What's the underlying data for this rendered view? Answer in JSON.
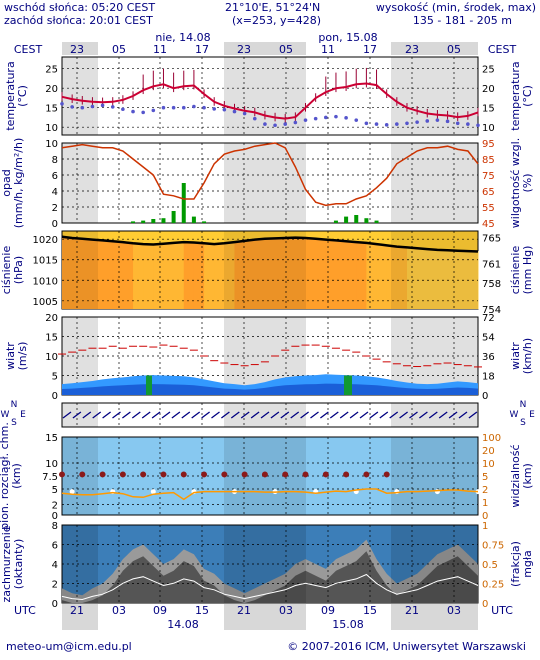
{
  "header": {
    "sunrise": "wschód słońca: 05:20 CEST",
    "sunset": "zachód słońca: 20:01 CEST",
    "coords": "21°10'E, 51°24'N",
    "grid": "(x=253, y=428)",
    "height_label": "wysokość (min, środek, max)",
    "height_values": "135 - 181 - 205 m"
  },
  "footer": {
    "email": "meteo-um@icm.edu.pl",
    "copyright": "© 2007-2016 ICM, Uniwersytet Warszawski"
  },
  "colors": {
    "bg": "#ffffff",
    "panel_bg": "#ffffff",
    "night_shade": "#d8d8d8",
    "accent": "#000080",
    "temp_line": "#cc0033",
    "dew_dots": "#5555cc",
    "humidity_line": "#cc3300",
    "precip_bar": "#009900",
    "pressure_line": "#000000",
    "wind_fill": "#1a5fd8",
    "wind_fill_light": "#3399ff",
    "wind_green": "#119933",
    "vis_bg": "#87c8f0",
    "vis_line": "#ff9900",
    "cloud_bg": "#3c7eb8"
  },
  "chart_data": {
    "type": "line",
    "top_axis": {
      "tz_left": "CEST",
      "tz_right": "CEST",
      "date_labels": [
        "nie, 14.08",
        "pon, 15.08"
      ],
      "hour_labels": [
        "23",
        "05",
        "11",
        "17",
        "23",
        "05",
        "11",
        "17",
        "23",
        "05"
      ]
    },
    "bottom_axis": {
      "tz_left": "UTC",
      "tz_right": "UTC",
      "date_labels": [
        "14.08",
        "15.08"
      ],
      "hour_labels": [
        "21",
        "03",
        "09",
        "15",
        "21",
        "03",
        "09",
        "15",
        "21",
        "03"
      ]
    },
    "panels": [
      {
        "id": "temperature",
        "ylabel_left": "temperatura\n(°C)",
        "ylabel_right": "temperatura\n(°C)",
        "ylim": [
          8,
          28
        ],
        "yticks": [
          10,
          15,
          20,
          25
        ],
        "series": [
          {
            "values": [
              17.8,
              17.2,
              16.8,
              16.5,
              16.4,
              16.5,
              17.0,
              18.0,
              19.5,
              20.5,
              21.0,
              20.0,
              20.5,
              20.7,
              18.5,
              16.5,
              15.5,
              14.8,
              14.2,
              13.8,
              13.0,
              12.5,
              12.2,
              12.6,
              15.0,
              17.5,
              19.0,
              20.0,
              20.3,
              21.0,
              21.2,
              20.8,
              18.5,
              16.5,
              15.0,
              14.2,
              13.5,
              13.2,
              13.0,
              12.6,
              12.9,
              13.8
            ]
          },
          {
            "values": [
              16.0,
              15.2,
              15.0,
              15.3,
              15.6,
              15.2,
              14.6,
              14.0,
              13.8,
              14.3,
              15.0,
              15.0,
              15.0,
              15.3,
              15.0,
              14.7,
              14.5,
              14.0,
              13.5,
              12.2,
              10.8,
              10.5,
              10.8,
              11.2,
              11.8,
              12.2,
              12.5,
              12.7,
              12.4,
              11.8,
              11.0,
              10.8,
              10.6,
              10.8,
              11.0,
              11.3,
              11.6,
              11.8,
              11.5,
              11.0,
              10.8,
              10.5
            ]
          }
        ]
      },
      {
        "id": "precip_humidity",
        "ylabel_left": "opad\n(mm/h, kg/m²/h)",
        "ylabel_right": "wilgotność wzgl.\n(%)",
        "ylim": [
          0,
          10
        ],
        "yticks": [
          0,
          2,
          4,
          6,
          8,
          10
        ],
        "ylim_right": [
          45,
          95
        ],
        "yticks_right": [
          45,
          55,
          65,
          75,
          85,
          95
        ],
        "series": [
          {
            "values": [
              92,
              93,
              94,
              93,
              92,
              92,
              90,
              85,
              80,
              75,
              63,
              62,
              60,
              60,
              70,
              82,
              88,
              90,
              91,
              93,
              94,
              95,
              92,
              80,
              66,
              58,
              56,
              57,
              57,
              60,
              62,
              67,
              73,
              82,
              86,
              90,
              92,
              92,
              93,
              91,
              90,
              82
            ]
          }
        ],
        "bars": [
          0,
          0,
          0,
          0,
          0,
          0,
          0,
          0.2,
          0.3,
          0.5,
          0.6,
          1.5,
          5.0,
          0.8,
          0.2,
          0,
          0,
          0,
          0,
          0,
          0,
          0,
          0,
          0,
          0,
          0,
          0,
          0.3,
          0.8,
          1.0,
          0.6,
          0.3,
          0,
          0,
          0,
          0,
          0,
          0,
          0,
          0,
          0,
          0
        ]
      },
      {
        "id": "pressure",
        "ylabel_left": "ciśnienie\n(hPa)",
        "ylabel_right": "ciśnienie\n(mm Hg)",
        "ylim": [
          1003,
          1022
        ],
        "yticks": [
          1005,
          1010,
          1015,
          1020
        ],
        "ylim_right": [
          754,
          766
        ],
        "yticks_right": [
          754,
          758,
          761,
          765
        ],
        "series": [
          {
            "values": [
              1020.6,
              1020.3,
              1020.1,
              1019.9,
              1019.7,
              1019.5,
              1019.3,
              1019.0,
              1018.8,
              1018.7,
              1018.9,
              1019.1,
              1019.3,
              1019.2,
              1019.0,
              1018.8,
              1019.0,
              1019.3,
              1019.6,
              1019.9,
              1020.1,
              1020.2,
              1020.3,
              1020.4,
              1020.3,
              1020.1,
              1019.9,
              1019.7,
              1019.5,
              1019.3,
              1019.1,
              1018.8,
              1018.5,
              1018.2,
              1018.0,
              1017.8,
              1017.6,
              1017.4,
              1017.3,
              1017.2,
              1017.1,
              1017.0
            ]
          }
        ]
      },
      {
        "id": "wind",
        "ylabel_left": "wiatr\n(m/s)",
        "ylabel_right": "wiatr\n(km/h)",
        "ylim": [
          0,
          20
        ],
        "yticks": [
          0,
          5,
          10,
          15,
          20
        ],
        "ylim_right": [
          0,
          72
        ],
        "yticks_right": [
          0,
          18,
          36,
          54,
          72
        ],
        "series": [
          {
            "values": [
              2.8,
              3.0,
              3.3,
              3.6,
              4.0,
              4.3,
              4.5,
              4.8,
              5.0,
              5.1,
              5.0,
              4.9,
              4.8,
              4.5,
              4.0,
              3.5,
              3.0,
              2.8,
              2.5,
              2.8,
              3.3,
              4.0,
              4.5,
              4.8,
              5.0,
              5.1,
              5.3,
              5.2,
              5.1,
              5.0,
              4.8,
              4.5,
              4.1,
              3.6,
              3.2,
              2.9,
              2.8,
              2.9,
              3.2,
              3.5,
              3.3,
              3.0
            ]
          },
          {
            "values": [
              10.5,
              11.0,
              11.5,
              12.0,
              12.0,
              12.5,
              12.0,
              12.5,
              12.5,
              12.3,
              12.8,
              12.5,
              12.0,
              11.5,
              10.0,
              8.8,
              8.2,
              7.8,
              7.5,
              7.8,
              8.5,
              10.0,
              11.5,
              12.5,
              12.8,
              12.8,
              12.5,
              12.0,
              11.5,
              11.0,
              10.0,
              9.2,
              8.5,
              8.0,
              7.5,
              7.3,
              7.5,
              8.0,
              8.2,
              7.8,
              7.5,
              7.2
            ]
          }
        ]
      },
      {
        "id": "wind_direction",
        "ylabel_left": "W N S E",
        "ylabel_right": "W N S E"
      },
      {
        "id": "visibility",
        "ylabel_left": "pion. rozciągł. chm.\n(km)",
        "ylabel_right": "widzialność\n(km)",
        "ylim": [
          0,
          15
        ],
        "yticks": [
          0.0,
          2.0,
          5.0,
          7.5,
          10.0,
          15.0
        ],
        "ylim_right": [
          0,
          100
        ],
        "yticks_right": [
          0,
          1,
          2,
          5,
          10,
          20,
          100
        ],
        "series": [
          {
            "values": [
              4.2,
              4.0,
              3.9,
              3.9,
              4.1,
              4.3,
              4.1,
              3.5,
              3.4,
              4.0,
              4.2,
              4.3,
              3.0,
              4.3,
              4.5,
              4.5,
              4.5,
              4.5,
              4.5,
              4.5,
              4.4,
              4.4,
              4.5,
              4.5,
              4.4,
              4.2,
              4.4,
              4.6,
              4.5,
              4.8,
              5.0,
              5.0,
              4.2,
              4.3,
              4.5,
              4.5,
              4.6,
              4.7,
              4.8,
              4.8,
              4.6,
              4.5
            ]
          }
        ]
      },
      {
        "id": "clouds",
        "ylabel_left": "zachmurzenie\n(oktanty)",
        "ylabel_right": "(frakcja)\nmgła",
        "ylim": [
          0,
          8
        ],
        "yticks": [
          0,
          2,
          4,
          6,
          8
        ],
        "ylim_right": [
          0,
          1
        ],
        "yticks_right": [
          0,
          0.25,
          0.5,
          0.75,
          1
        ],
        "series": [
          {
            "values": [
              1.5,
              1.0,
              0.8,
              1.5,
              2.0,
              3.0,
              4.5,
              5.5,
              6.0,
              5.0,
              4.0,
              4.5,
              5.5,
              5.0,
              3.5,
              3.0,
              2.0,
              1.5,
              1.0,
              1.5,
              2.0,
              2.5,
              3.0,
              4.0,
              4.5,
              4.0,
              3.5,
              4.5,
              5.0,
              5.5,
              6.5,
              4.5,
              3.0,
              2.0,
              2.5,
              3.0,
              4.0,
              5.0,
              5.5,
              6.0,
              5.0,
              4.0
            ]
          }
        ]
      }
    ]
  }
}
